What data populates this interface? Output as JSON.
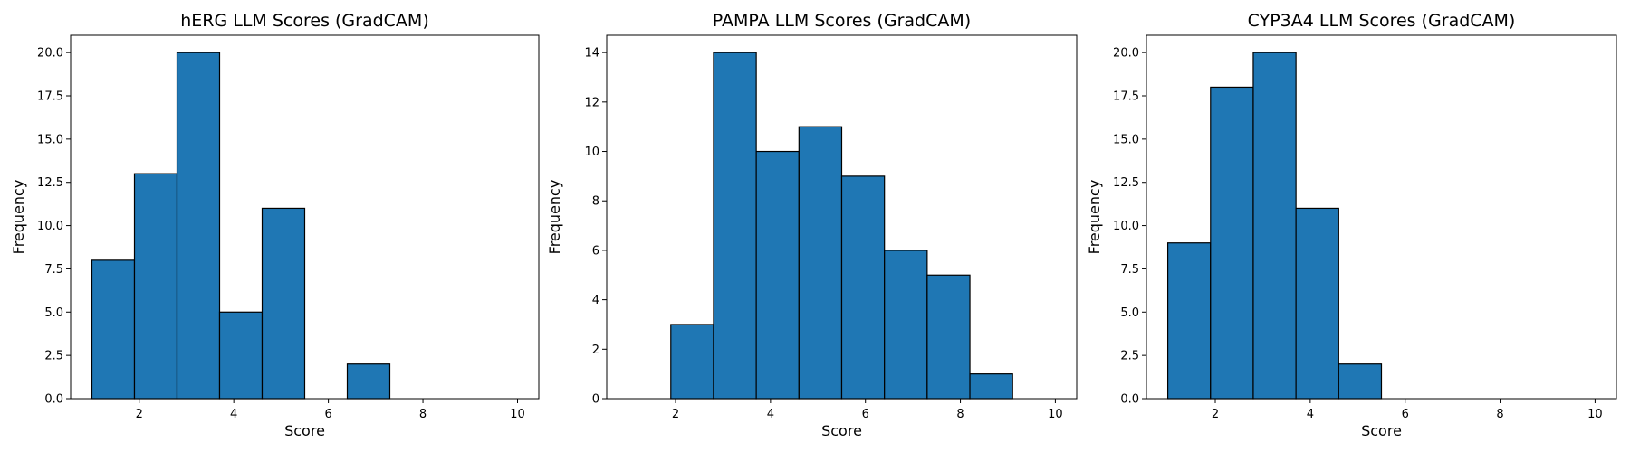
{
  "chart_data": [
    {
      "type": "bar",
      "title": "hERG LLM Scores (GradCAM)",
      "xlabel": "Score",
      "ylabel": "Frequency",
      "bin_edges": [
        1.0,
        1.9,
        2.8,
        3.7,
        4.6,
        5.5,
        6.4,
        7.3,
        8.2,
        9.1,
        10.0
      ],
      "values": [
        8,
        13,
        20,
        5,
        11,
        0,
        2,
        0,
        0,
        0
      ],
      "xlim": [
        0.55,
        10.45
      ],
      "ylim": [
        0,
        21
      ],
      "xticks": [
        2,
        4,
        6,
        8,
        10
      ],
      "xtick_labels": [
        "2",
        "4",
        "6",
        "8",
        "10"
      ],
      "yticks": [
        0,
        2.5,
        5,
        7.5,
        10,
        12.5,
        15,
        17.5,
        20
      ],
      "ytick_labels": [
        "0.0",
        "2.5",
        "5.0",
        "7.5",
        "10.0",
        "12.5",
        "15.0",
        "17.5",
        "20.0"
      ],
      "color": "#1f77b4",
      "grid": false
    },
    {
      "type": "bar",
      "title": "PAMPA LLM Scores (GradCAM)",
      "xlabel": "Score",
      "ylabel": "Frequency",
      "bin_edges": [
        1.0,
        1.9,
        2.8,
        3.7,
        4.6,
        5.5,
        6.4,
        7.3,
        8.2,
        9.1,
        10.0
      ],
      "values": [
        0,
        3,
        14,
        10,
        11,
        9,
        6,
        5,
        1,
        0
      ],
      "xlim": [
        0.55,
        10.45
      ],
      "ylim": [
        0,
        14.7
      ],
      "xticks": [
        2,
        4,
        6,
        8,
        10
      ],
      "xtick_labels": [
        "2",
        "4",
        "6",
        "8",
        "10"
      ],
      "yticks": [
        0,
        2,
        4,
        6,
        8,
        10,
        12,
        14
      ],
      "ytick_labels": [
        "0",
        "2",
        "4",
        "6",
        "8",
        "10",
        "12",
        "14"
      ],
      "color": "#1f77b4",
      "grid": false
    },
    {
      "type": "bar",
      "title": "CYP3A4 LLM Scores (GradCAM)",
      "xlabel": "Score",
      "ylabel": "Frequency",
      "bin_edges": [
        1.0,
        1.9,
        2.8,
        3.7,
        4.6,
        5.5,
        6.4,
        7.3,
        8.2,
        9.1,
        10.0
      ],
      "values": [
        9,
        18,
        20,
        11,
        2,
        0,
        0,
        0,
        0,
        0
      ],
      "xlim": [
        0.55,
        10.45
      ],
      "ylim": [
        0,
        21
      ],
      "xticks": [
        2,
        4,
        6,
        8,
        10
      ],
      "xtick_labels": [
        "2",
        "4",
        "6",
        "8",
        "10"
      ],
      "yticks": [
        0,
        2.5,
        5,
        7.5,
        10,
        12.5,
        15,
        17.5,
        20
      ],
      "ytick_labels": [
        "0.0",
        "2.5",
        "5.0",
        "7.5",
        "10.0",
        "12.5",
        "15.0",
        "17.5",
        "20.0"
      ],
      "color": "#1f77b4",
      "grid": false
    }
  ]
}
